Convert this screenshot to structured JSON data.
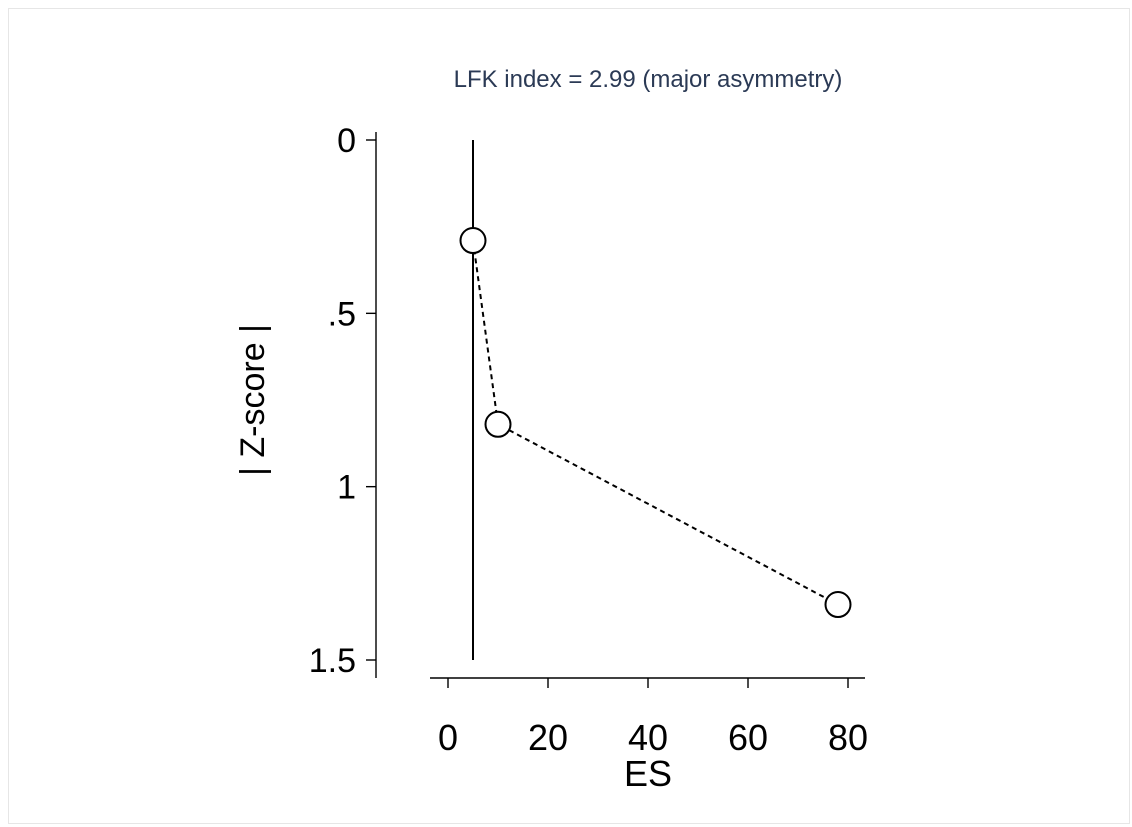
{
  "chart_data": {
    "type": "scatter",
    "title": "LFK index = 2.99 (major asymmetry)",
    "xlabel": "ES",
    "ylabel": "| Z-score |",
    "xlim": [
      -5,
      83
    ],
    "ylim": [
      0,
      1.5
    ],
    "y_reversed": true,
    "xticks": [
      0,
      20,
      40,
      60,
      80
    ],
    "xtick_labels": [
      "0",
      "20",
      "40",
      "60",
      "80"
    ],
    "yticks": [
      0,
      0.5,
      1,
      1.5
    ],
    "ytick_labels": [
      "0",
      ".5",
      "1",
      "1.5"
    ],
    "reference_line": {
      "x": 5,
      "y_from": 0,
      "y_to": 1.5
    },
    "series": [
      {
        "points": [
          {
            "x": 5,
            "y": 0.29
          },
          {
            "x": 10,
            "y": 0.82
          },
          {
            "x": 78,
            "y": 1.34
          }
        ],
        "connector": "dashed",
        "marker": "hollow-circle"
      }
    ],
    "grid": false,
    "colors": {
      "title": "#2b3a55",
      "text": "#000000",
      "marker_fill": "#ffffff"
    }
  }
}
